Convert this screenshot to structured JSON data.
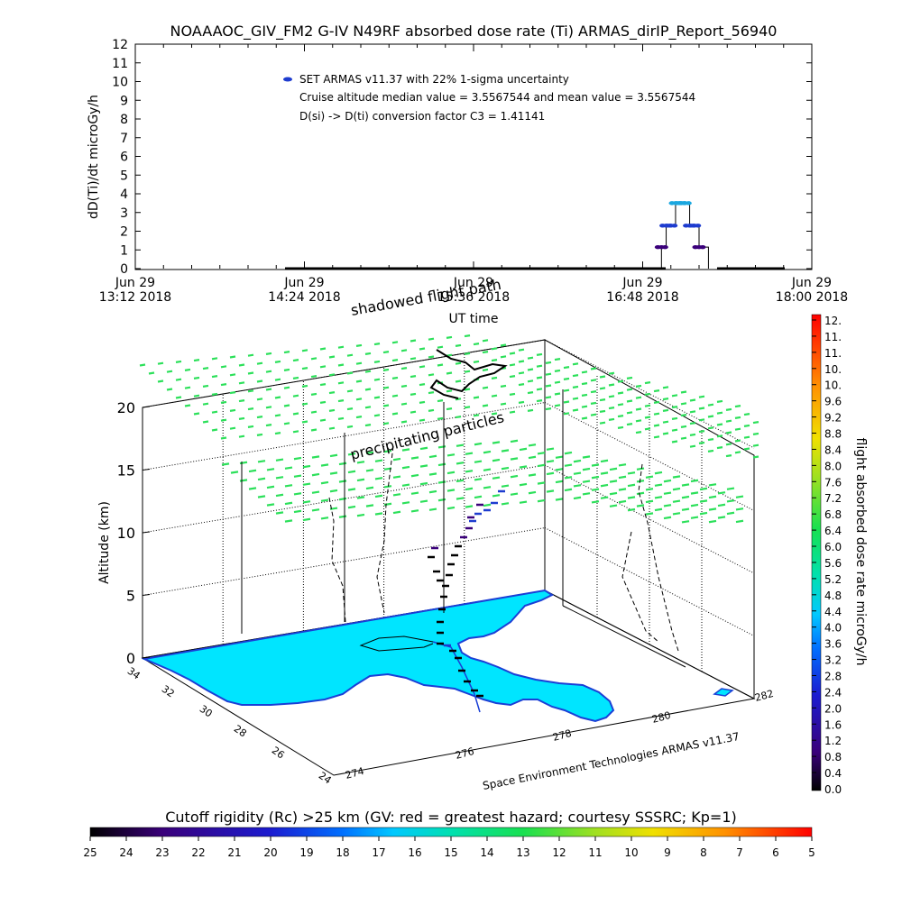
{
  "header": {
    "title": "NOAAAOC_GIV_FM2 G-IV    N49RF  absorbed dose rate (Ti) ARMAS_dirIP_Report_56940"
  },
  "chart_data": [
    {
      "type": "line",
      "ylabel": "dD(Ti)/dt microGy/h",
      "xlabel": "UT time",
      "ylim": [
        0,
        12
      ],
      "yticks": [
        "0",
        "1",
        "2",
        "3",
        "4",
        "5",
        "6",
        "7",
        "8",
        "9",
        "10",
        "11",
        "12"
      ],
      "xticks": [
        {
          "date": "Jun 29",
          "time": "13:12 2018"
        },
        {
          "date": "Jun 29",
          "time": "14:24 2018"
        },
        {
          "date": "Jun 29",
          "time": "15:36 2018"
        },
        {
          "date": "Jun 29",
          "time": "16:48 2018"
        },
        {
          "date": "Jun 29",
          "time": "18:00 2018"
        }
      ],
      "legend": {
        "entry": "SET ARMAS v11.37 with 22% 1-sigma uncertainty",
        "line2": "Cruise altitude median value = 3.5567544 and mean value = 3.5567544",
        "line3": "D(si) -> D(ti) conversion factor C3 = 1.41141",
        "color": "#1e3ccf"
      },
      "series": [
        {
          "x_minutes": [
            0,
            4,
            8,
            10,
            12,
            14,
            16,
            18,
            20,
            22,
            24,
            28
          ],
          "values": [
            0,
            0,
            1.15,
            2.3,
            2.3,
            3.5,
            3.5,
            3.5,
            2.3,
            2.3,
            1.15,
            0
          ]
        }
      ],
      "series_x_start": "Jun 29 16:48 2018"
    },
    {
      "type": "scatter",
      "subtype": "3d-flight-track",
      "zlabel": "Altitude (km)",
      "zticks": [
        "0",
        "5",
        "10",
        "15",
        "20"
      ],
      "lat_ticks": [
        "24",
        "26",
        "28",
        "30",
        "32",
        "34"
      ],
      "lon_ticks": [
        "274",
        "276",
        "278",
        "280",
        "282"
      ],
      "annotations": {
        "shadow": "shadowed flight path",
        "precip": "precipitating particles"
      },
      "credit": "Space Environment Technologies ARMAS v11.37"
    }
  ],
  "colorbar_right": {
    "label": "flight absorbed dose rate microGy/h",
    "ticks": [
      "12.",
      "11.",
      "11.",
      "10.",
      "10.",
      "9.6",
      "9.2",
      "8.8",
      "8.4",
      "8.0",
      "7.6",
      "7.2",
      "6.8",
      "6.4",
      "6.0",
      "5.6",
      "5.2",
      "4.8",
      "4.4",
      "4.0",
      "3.6",
      "3.2",
      "2.8",
      "2.4",
      "2.0",
      "1.6",
      "1.2",
      "0.8",
      "0.4",
      "0.0"
    ]
  },
  "colorbar_bottom": {
    "title": "Cutoff rigidity (Rc) >25 km (GV: red = greatest hazard; courtesy SSSRC; Kp=1)",
    "ticks": [
      "25",
      "24",
      "23",
      "22",
      "21",
      "20",
      "19",
      "18",
      "17",
      "16",
      "15",
      "14",
      "13",
      "12",
      "11",
      "10",
      "9",
      "8",
      "7",
      "6",
      "5"
    ]
  },
  "colors": {
    "land": "#00e5ff",
    "coast": "#1a3fd6",
    "precip": "#2ce05a",
    "track": "#000000"
  }
}
